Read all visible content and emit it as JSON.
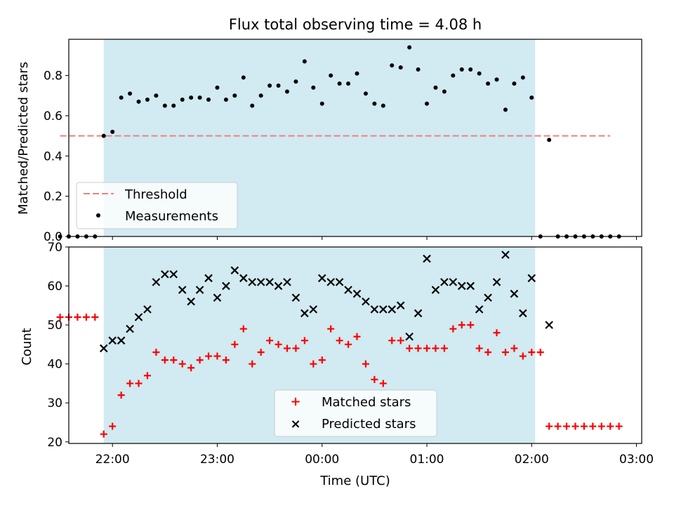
{
  "title": "Flux total observing time = 4.08 h",
  "colors": {
    "band": "#add8e6",
    "threshold": "#f08080",
    "measure": "#000000",
    "matched": "#ff0000",
    "predicted": "#000000"
  },
  "chart_data": [
    {
      "type": "scatter",
      "ylabel": "Matched/Predicted stars",
      "ylim": [
        0,
        0.98
      ],
      "xlim": [
        "21:35",
        "03:03"
      ],
      "yticks": [
        "0.0",
        "0.2",
        "0.4",
        "0.6",
        "0.8"
      ],
      "ytick_values": [
        0,
        0.2,
        0.4,
        0.6,
        0.8
      ],
      "shaded_interval": [
        "21:55",
        "02:02"
      ],
      "threshold": {
        "name": "Threshold",
        "y": 0.5,
        "x": [
          "21:30",
          "02:45"
        ]
      },
      "series": [
        {
          "name": "Measurements",
          "points": [
            [
              "21:30",
              0
            ],
            [
              "21:35",
              0
            ],
            [
              "21:40",
              0
            ],
            [
              "21:45",
              0
            ],
            [
              "21:50",
              0
            ],
            [
              "21:55",
              0.5
            ],
            [
              "22:00",
              0.52
            ],
            [
              "22:05",
              0.69
            ],
            [
              "22:10",
              0.71
            ],
            [
              "22:15",
              0.67
            ],
            [
              "22:20",
              0.68
            ],
            [
              "22:25",
              0.7
            ],
            [
              "22:30",
              0.65
            ],
            [
              "22:35",
              0.65
            ],
            [
              "22:40",
              0.68
            ],
            [
              "22:45",
              0.69
            ],
            [
              "22:50",
              0.69
            ],
            [
              "22:55",
              0.68
            ],
            [
              "23:00",
              0.74
            ],
            [
              "23:05",
              0.68
            ],
            [
              "23:10",
              0.7
            ],
            [
              "23:15",
              0.79
            ],
            [
              "23:20",
              0.65
            ],
            [
              "23:25",
              0.7
            ],
            [
              "23:30",
              0.75
            ],
            [
              "23:35",
              0.75
            ],
            [
              "23:40",
              0.72
            ],
            [
              "23:45",
              0.77
            ],
            [
              "23:50",
              0.87
            ],
            [
              "23:55",
              0.74
            ],
            [
              "00:00",
              0.66
            ],
            [
              "00:05",
              0.8
            ],
            [
              "00:10",
              0.76
            ],
            [
              "00:15",
              0.76
            ],
            [
              "00:20",
              0.81
            ],
            [
              "00:25",
              0.71
            ],
            [
              "00:30",
              0.66
            ],
            [
              "00:35",
              0.65
            ],
            [
              "00:40",
              0.85
            ],
            [
              "00:45",
              0.84
            ],
            [
              "00:50",
              0.94
            ],
            [
              "00:55",
              0.83
            ],
            [
              "01:00",
              0.66
            ],
            [
              "01:05",
              0.74
            ],
            [
              "01:10",
              0.72
            ],
            [
              "01:15",
              0.8
            ],
            [
              "01:20",
              0.83
            ],
            [
              "01:25",
              0.83
            ],
            [
              "01:30",
              0.81
            ],
            [
              "01:35",
              0.76
            ],
            [
              "01:40",
              0.78
            ],
            [
              "01:45",
              0.63
            ],
            [
              "01:50",
              0.76
            ],
            [
              "01:55",
              0.79
            ],
            [
              "02:00",
              0.69
            ],
            [
              "02:05",
              0
            ],
            [
              "02:10",
              0.48
            ],
            [
              "02:15",
              0
            ],
            [
              "02:20",
              0
            ],
            [
              "02:25",
              0
            ],
            [
              "02:30",
              0
            ],
            [
              "02:35",
              0
            ],
            [
              "02:40",
              0
            ],
            [
              "02:45",
              0
            ],
            [
              "02:50",
              0
            ]
          ]
        }
      ]
    },
    {
      "type": "scatter",
      "ylabel": "Count",
      "xlabel": "Time (UTC)",
      "ylim": [
        19.6,
        70
      ],
      "xlim": [
        "21:35",
        "03:03"
      ],
      "yticks": [
        "20",
        "30",
        "40",
        "50",
        "60",
        "70"
      ],
      "ytick_values": [
        20,
        30,
        40,
        50,
        60,
        70
      ],
      "xticks": [
        "22:00",
        "23:00",
        "00:00",
        "01:00",
        "02:00",
        "03:00"
      ],
      "shaded_interval": [
        "21:55",
        "02:02"
      ],
      "series": [
        {
          "name": "Matched stars",
          "points": [
            [
              "21:30",
              52
            ],
            [
              "21:35",
              52
            ],
            [
              "21:40",
              52
            ],
            [
              "21:45",
              52
            ],
            [
              "21:50",
              52
            ],
            [
              "21:55",
              22
            ],
            [
              "22:00",
              24
            ],
            [
              "22:05",
              32
            ],
            [
              "22:10",
              35
            ],
            [
              "22:15",
              35
            ],
            [
              "22:20",
              37
            ],
            [
              "22:25",
              43
            ],
            [
              "22:30",
              41
            ],
            [
              "22:35",
              41
            ],
            [
              "22:40",
              40
            ],
            [
              "22:45",
              39
            ],
            [
              "22:50",
              41
            ],
            [
              "22:55",
              42
            ],
            [
              "23:00",
              42
            ],
            [
              "23:05",
              41
            ],
            [
              "23:10",
              45
            ],
            [
              "23:15",
              49
            ],
            [
              "23:20",
              40
            ],
            [
              "23:25",
              43
            ],
            [
              "23:30",
              46
            ],
            [
              "23:35",
              45
            ],
            [
              "23:40",
              44
            ],
            [
              "23:45",
              44
            ],
            [
              "23:50",
              46
            ],
            [
              "23:55",
              40
            ],
            [
              "00:00",
              41
            ],
            [
              "00:05",
              49
            ],
            [
              "00:10",
              46
            ],
            [
              "00:15",
              45
            ],
            [
              "00:20",
              47
            ],
            [
              "00:25",
              40
            ],
            [
              "00:30",
              36
            ],
            [
              "00:35",
              35
            ],
            [
              "00:40",
              46
            ],
            [
              "00:45",
              46
            ],
            [
              "00:50",
              44
            ],
            [
              "00:55",
              44
            ],
            [
              "01:00",
              44
            ],
            [
              "01:05",
              44
            ],
            [
              "01:10",
              44
            ],
            [
              "01:15",
              49
            ],
            [
              "01:20",
              50
            ],
            [
              "01:25",
              50
            ],
            [
              "01:30",
              44
            ],
            [
              "01:35",
              43
            ],
            [
              "01:40",
              48
            ],
            [
              "01:45",
              43
            ],
            [
              "01:50",
              44
            ],
            [
              "01:55",
              42
            ],
            [
              "02:00",
              43
            ],
            [
              "02:05",
              43
            ],
            [
              "02:10",
              24
            ],
            [
              "02:15",
              24
            ],
            [
              "02:20",
              24
            ],
            [
              "02:25",
              24
            ],
            [
              "02:30",
              24
            ],
            [
              "02:35",
              24
            ],
            [
              "02:40",
              24
            ],
            [
              "02:45",
              24
            ],
            [
              "02:50",
              24
            ]
          ]
        },
        {
          "name": "Predicted stars",
          "points": [
            [
              "21:55",
              44
            ],
            [
              "22:00",
              46
            ],
            [
              "22:05",
              46
            ],
            [
              "22:10",
              49
            ],
            [
              "22:15",
              52
            ],
            [
              "22:20",
              54
            ],
            [
              "22:25",
              61
            ],
            [
              "22:30",
              63
            ],
            [
              "22:35",
              63
            ],
            [
              "22:40",
              59
            ],
            [
              "22:45",
              56
            ],
            [
              "22:50",
              59
            ],
            [
              "22:55",
              62
            ],
            [
              "23:00",
              57
            ],
            [
              "23:05",
              60
            ],
            [
              "23:10",
              64
            ],
            [
              "23:15",
              62
            ],
            [
              "23:20",
              61
            ],
            [
              "23:25",
              61
            ],
            [
              "23:30",
              61
            ],
            [
              "23:35",
              60
            ],
            [
              "23:40",
              61
            ],
            [
              "23:45",
              57
            ],
            [
              "23:50",
              53
            ],
            [
              "23:55",
              54
            ],
            [
              "00:00",
              62
            ],
            [
              "00:05",
              61
            ],
            [
              "00:10",
              61
            ],
            [
              "00:15",
              59
            ],
            [
              "00:20",
              58
            ],
            [
              "00:25",
              56
            ],
            [
              "00:30",
              54
            ],
            [
              "00:35",
              54
            ],
            [
              "00:40",
              54
            ],
            [
              "00:45",
              55
            ],
            [
              "00:50",
              47
            ],
            [
              "00:55",
              53
            ],
            [
              "01:00",
              67
            ],
            [
              "01:05",
              59
            ],
            [
              "01:10",
              61
            ],
            [
              "01:15",
              61
            ],
            [
              "01:20",
              60
            ],
            [
              "01:25",
              60
            ],
            [
              "01:30",
              54
            ],
            [
              "01:35",
              57
            ],
            [
              "01:40",
              61
            ],
            [
              "01:45",
              68
            ],
            [
              "01:50",
              58
            ],
            [
              "01:55",
              53
            ],
            [
              "02:00",
              62
            ],
            [
              "02:10",
              50
            ]
          ]
        }
      ]
    }
  ]
}
